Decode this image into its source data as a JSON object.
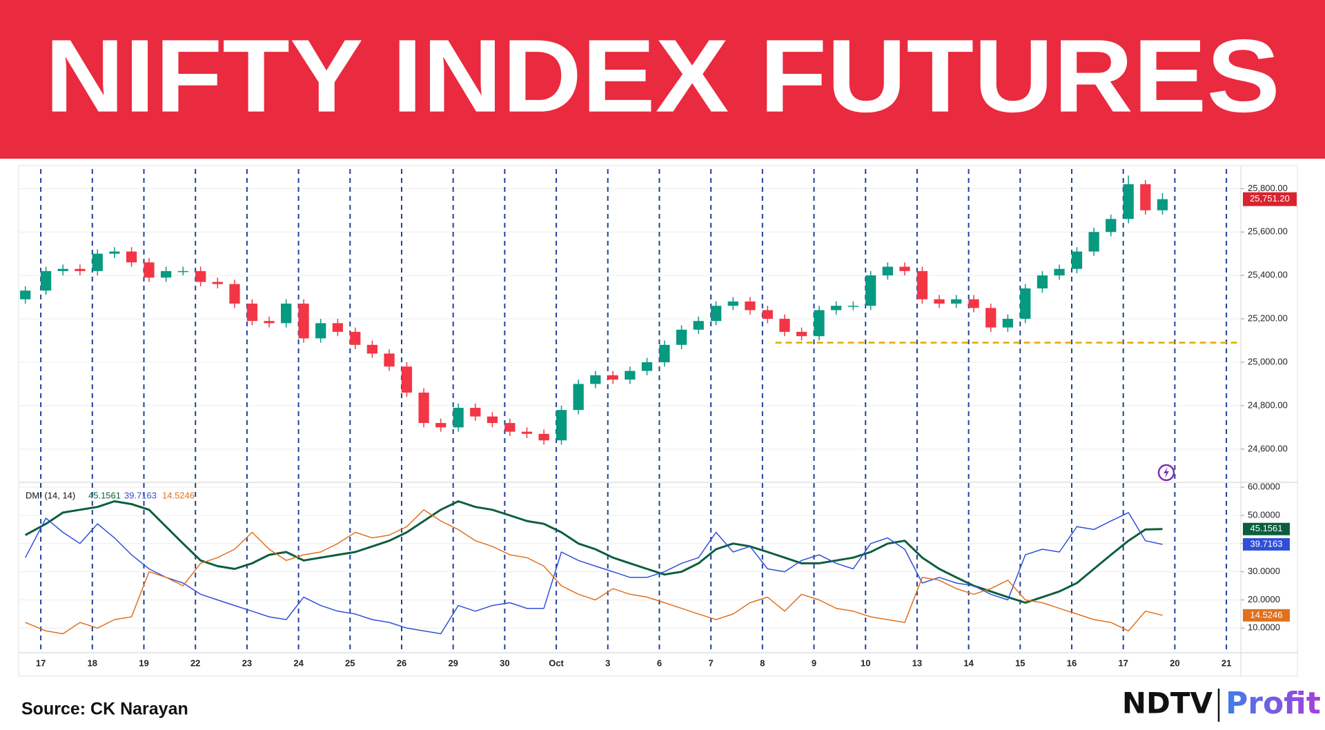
{
  "header": {
    "title": "NIFTY INDEX FUTURES"
  },
  "chart_data": [
    {
      "type": "candlestick",
      "x": [
        -0.3,
        0.1,
        0.43,
        0.76,
        1.1,
        1.43,
        1.76,
        2.1,
        2.43,
        2.76,
        3.1,
        3.43,
        3.76,
        4.1,
        4.43,
        4.76,
        5.1,
        5.43,
        5.76,
        6.1,
        6.43,
        6.76,
        7.1,
        7.43,
        7.76,
        8.1,
        8.43,
        8.76,
        9.1,
        9.43,
        9.76,
        10.1,
        10.43,
        10.76,
        11.1,
        11.43,
        11.76,
        12.1,
        12.43,
        12.76,
        13.1,
        13.43,
        13.76,
        14.1,
        14.43,
        14.76,
        15.1,
        15.43,
        15.76,
        16.1,
        16.43,
        16.76,
        17.1,
        17.43,
        17.76,
        18.1,
        18.43,
        18.76,
        19.1,
        19.43,
        19.76,
        20.1,
        20.43,
        20.76,
        21.1,
        21.43,
        21.76
      ],
      "open": [
        25290,
        25330,
        25420,
        25430,
        25420,
        25500,
        25510,
        25460,
        25390,
        25420,
        25420,
        25370,
        25360,
        25270,
        25190,
        25180,
        25270,
        25110,
        25180,
        25140,
        25080,
        25040,
        24980,
        24860,
        24720,
        24700,
        24790,
        24750,
        24720,
        24680,
        24670,
        24640,
        24780,
        24900,
        24940,
        24920,
        24960,
        25000,
        25080,
        25150,
        25190,
        25260,
        25280,
        25240,
        25200,
        25140,
        25120,
        25240,
        25260,
        25260,
        25400,
        25440,
        25420,
        25290,
        25270,
        25290,
        25250,
        25160,
        25200,
        25340,
        25400,
        25430,
        25510,
        25600,
        25660,
        25820,
        25700
      ],
      "high": [
        25350,
        25440,
        25450,
        25450,
        25520,
        25530,
        25530,
        25480,
        25440,
        25440,
        25440,
        25390,
        25380,
        25290,
        25210,
        25290,
        25290,
        25200,
        25200,
        25160,
        25100,
        25060,
        25000,
        24880,
        24740,
        24810,
        24810,
        24770,
        24740,
        24700,
        24690,
        24800,
        24920,
        24960,
        24960,
        24980,
        25020,
        25100,
        25170,
        25210,
        25280,
        25300,
        25300,
        25260,
        25220,
        25160,
        25260,
        25280,
        25280,
        25420,
        25460,
        25460,
        25440,
        25310,
        25310,
        25310,
        25270,
        25220,
        25360,
        25420,
        25450,
        25530,
        25620,
        25680,
        25860,
        25840,
        25780
      ],
      "low": [
        25270,
        25310,
        25400,
        25400,
        25400,
        25480,
        25440,
        25370,
        25370,
        25400,
        25350,
        25340,
        25250,
        25170,
        25160,
        25160,
        25090,
        25090,
        25120,
        25060,
        25020,
        24960,
        24840,
        24700,
        24680,
        24680,
        24730,
        24700,
        24660,
        24650,
        24620,
        24620,
        24760,
        24880,
        24900,
        24900,
        24940,
        24980,
        25060,
        25130,
        25170,
        25240,
        25220,
        25180,
        25120,
        25100,
        25100,
        25220,
        25240,
        25240,
        25380,
        25400,
        25270,
        25250,
        25250,
        25230,
        25140,
        25140,
        25180,
        25320,
        25380,
        25410,
        25490,
        25580,
        25640,
        25680,
        25680
      ],
      "close": [
        25330,
        25420,
        25430,
        25420,
        25500,
        25510,
        25460,
        25390,
        25420,
        25420,
        25370,
        25360,
        25270,
        25190,
        25180,
        25270,
        25110,
        25180,
        25140,
        25080,
        25040,
        24980,
        24860,
        24720,
        24700,
        24790,
        24750,
        24720,
        24680,
        24670,
        24640,
        24780,
        24900,
        24940,
        24920,
        24960,
        25000,
        25080,
        25150,
        25190,
        25260,
        25280,
        25240,
        25200,
        25140,
        25120,
        25240,
        25260,
        25260,
        25400,
        25440,
        25420,
        25290,
        25270,
        25290,
        25250,
        25160,
        25200,
        25340,
        25400,
        25430,
        25510,
        25600,
        25660,
        25820,
        25700,
        25751.2
      ],
      "up_color": "#089981",
      "down_color": "#f23645",
      "last_label": "25,751.20",
      "last_color": "#d9232e",
      "support_line": {
        "value": 25090,
        "from_x": 14.25,
        "color": "#e0a800"
      },
      "xlim": [
        -0.43,
        23.28
      ],
      "ylim": [
        24450,
        25890
      ],
      "yticks": [
        {
          "value": 24600,
          "label": "24,600.00"
        },
        {
          "value": 24800,
          "label": "24,800.00"
        },
        {
          "value": 25000,
          "label": "25,000.00"
        },
        {
          "value": 25200,
          "label": "25,200.00"
        },
        {
          "value": 25400,
          "label": "25,400.00"
        },
        {
          "value": 25600,
          "label": "25,600.00"
        },
        {
          "value": 25800,
          "label": "25,800.00"
        }
      ],
      "grid": true
    },
    {
      "type": "line",
      "title": "DMI (14, 14)",
      "x": [
        -0.3,
        0.1,
        0.43,
        0.76,
        1.1,
        1.43,
        1.76,
        2.1,
        2.43,
        2.76,
        3.1,
        3.43,
        3.76,
        4.1,
        4.43,
        4.76,
        5.1,
        5.43,
        5.76,
        6.1,
        6.43,
        6.76,
        7.1,
        7.43,
        7.76,
        8.1,
        8.43,
        8.76,
        9.1,
        9.43,
        9.76,
        10.1,
        10.43,
        10.76,
        11.1,
        11.43,
        11.76,
        12.1,
        12.43,
        12.76,
        13.1,
        13.43,
        13.76,
        14.1,
        14.43,
        14.76,
        15.1,
        15.43,
        15.76,
        16.1,
        16.43,
        16.76,
        17.1,
        17.43,
        17.76,
        18.1,
        18.43,
        18.76,
        19.1,
        19.43,
        19.76,
        20.1,
        20.43,
        20.76,
        21.1,
        21.43,
        21.76
      ],
      "series": [
        {
          "color": "#0b5e3c",
          "width": 3,
          "values": [
            43,
            47,
            51,
            52,
            53,
            55,
            54,
            52,
            46,
            40,
            34,
            32,
            31,
            33,
            36,
            37,
            34,
            35,
            36,
            37,
            39,
            41,
            44,
            48,
            52,
            55,
            53,
            52,
            50,
            48,
            47,
            44,
            40,
            38,
            35,
            33,
            31,
            29,
            30,
            33,
            38,
            40,
            39,
            37,
            35,
            33,
            33,
            34,
            35,
            37,
            40,
            41,
            35,
            31,
            28,
            25,
            23,
            21,
            19,
            21,
            23,
            26,
            31,
            36,
            41,
            45,
            45.1561
          ]
        },
        {
          "color": "#2f4fd6",
          "width": 1.5,
          "values": [
            35,
            49,
            44,
            40,
            47,
            42,
            36,
            31,
            28,
            26,
            22,
            20,
            18,
            16,
            14,
            13,
            21,
            18,
            16,
            15,
            13,
            12,
            10,
            9,
            8,
            18,
            16,
            18,
            19,
            17,
            17,
            37,
            34,
            32,
            30,
            28,
            28,
            30,
            33,
            35,
            44,
            37,
            39,
            31,
            30,
            34,
            36,
            33,
            31,
            40,
            42,
            38,
            26,
            28,
            26,
            25,
            22,
            20,
            36,
            38,
            37,
            46,
            45,
            48,
            51,
            41,
            39.7163
          ]
        },
        {
          "color": "#e0701c",
          "width": 1.5,
          "values": [
            12,
            9,
            8,
            12,
            10,
            13,
            14,
            30,
            28,
            25,
            33,
            35,
            38,
            44,
            38,
            34,
            36,
            37,
            40,
            44,
            42,
            43,
            46,
            52,
            48,
            45,
            41,
            39,
            36,
            35,
            32,
            25,
            22,
            20,
            24,
            22,
            21,
            19,
            17,
            15,
            13,
            15,
            19,
            21,
            16,
            22,
            20,
            17,
            16,
            14,
            13,
            12,
            28,
            27,
            24,
            22,
            24,
            27,
            20,
            19,
            17,
            15,
            13,
            12,
            9,
            16,
            14.5246
          ]
        }
      ],
      "xlim": [
        -0.43,
        23.28
      ],
      "ylim": [
        1.5,
        61.5
      ],
      "yticks": [
        {
          "value": 10,
          "label": "10.0000"
        },
        {
          "value": 20,
          "label": "20.0000"
        },
        {
          "value": 30,
          "label": "30.0000"
        },
        {
          "value": 40,
          "label": "40.0000"
        },
        {
          "value": 50,
          "label": "50.0000"
        },
        {
          "value": 60,
          "label": "60.0000"
        }
      ],
      "xticks": [
        {
          "value": 0,
          "label": "17"
        },
        {
          "value": 1,
          "label": "18"
        },
        {
          "value": 2,
          "label": "19"
        },
        {
          "value": 3,
          "label": "22"
        },
        {
          "value": 4,
          "label": "23"
        },
        {
          "value": 5,
          "label": "24"
        },
        {
          "value": 6,
          "label": "25"
        },
        {
          "value": 7,
          "label": "26"
        },
        {
          "value": 8,
          "label": "29"
        },
        {
          "value": 9,
          "label": "30"
        },
        {
          "value": 10,
          "label": "Oct"
        },
        {
          "value": 11,
          "label": "3"
        },
        {
          "value": 12,
          "label": "6"
        },
        {
          "value": 13,
          "label": "7"
        },
        {
          "value": 14,
          "label": "8"
        },
        {
          "value": 15,
          "label": "9"
        },
        {
          "value": 16,
          "label": "10"
        },
        {
          "value": 17,
          "label": "13"
        },
        {
          "value": 18,
          "label": "14"
        },
        {
          "value": 19,
          "label": "15"
        },
        {
          "value": 20,
          "label": "16"
        },
        {
          "value": 21,
          "label": "17"
        },
        {
          "value": 22,
          "label": "20"
        },
        {
          "value": 23,
          "label": "21"
        }
      ],
      "session_line_color": "#1f3f9a",
      "grid": true
    }
  ],
  "footer": {
    "source": "Source: CK Narayan",
    "brand": "NDTV",
    "brand_product": "Profit"
  }
}
